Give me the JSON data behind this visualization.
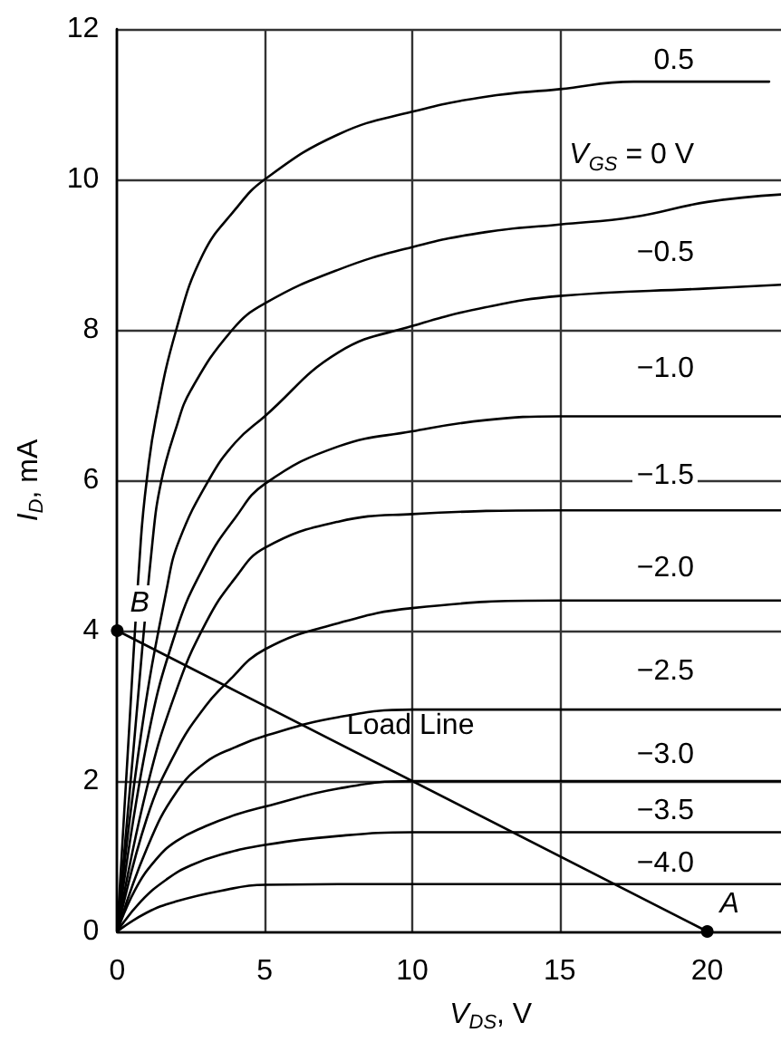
{
  "chart_data": {
    "type": "line",
    "xlabel": "V$_{DS}$, V",
    "ylabel": "I$_{D}$, mA",
    "xlim": [
      0,
      22.5
    ],
    "ylim": [
      0,
      12
    ],
    "xticks": [
      0,
      5,
      10,
      15,
      20
    ],
    "yticks": [
      0,
      2,
      4,
      6,
      8,
      10,
      12
    ],
    "grid": true,
    "marker": "none",
    "series": [
      {
        "name": "0.5",
        "color": "#000000",
        "x": [
          0,
          0.3,
          0.8,
          1.0,
          1.3,
          2.0,
          2.9,
          4.0,
          5.0,
          7.5,
          10,
          12.5,
          15,
          17.5,
          20,
          22.1
        ],
        "values": [
          0,
          2.0,
          5.2,
          6.0,
          6.8,
          8.0,
          9.0,
          9.6,
          10.0,
          10.6,
          10.9,
          11.1,
          11.2,
          11.3,
          11.3,
          11.3
        ]
      },
      {
        "name": "V$_{GS}$ = 0 V",
        "color": "#000000",
        "x": [
          0,
          0.5,
          1.2,
          1.5,
          2.0,
          2.5,
          3.9,
          5.0,
          7.5,
          10,
          12.5,
          15,
          17.5,
          20,
          22.5
        ],
        "values": [
          0,
          2.2,
          5.2,
          6.0,
          6.7,
          7.2,
          8.0,
          8.35,
          8.8,
          9.1,
          9.3,
          9.4,
          9.5,
          9.7,
          9.8
        ]
      },
      {
        "name": "−0.5",
        "color": "#000000",
        "x": [
          0,
          0.8,
          1.7,
          2.1,
          3.1,
          4.0,
          5.0,
          7.5,
          10,
          12.5,
          15,
          20,
          22.5
        ],
        "values": [
          0,
          2.6,
          4.6,
          5.2,
          6.0,
          6.5,
          6.85,
          7.7,
          8.05,
          8.3,
          8.45,
          8.55,
          8.6
        ]
      },
      {
        "name": "−1.0",
        "color": "#000000",
        "x": [
          0,
          1.0,
          2.0,
          3.0,
          4.0,
          5.0,
          7.5,
          10,
          12.5,
          15,
          22.5
        ],
        "values": [
          0,
          2.5,
          4.0,
          4.9,
          5.5,
          5.95,
          6.45,
          6.65,
          6.8,
          6.85,
          6.85
        ]
      },
      {
        "name": "−1.5",
        "color": "#000000",
        "x": [
          0,
          1.0,
          2.0,
          3.0,
          4.0,
          5.0,
          7.5,
          10,
          15,
          22.5
        ],
        "values": [
          0,
          1.9,
          3.2,
          4.1,
          4.7,
          5.1,
          5.45,
          5.55,
          5.6,
          5.6
        ]
      },
      {
        "name": "−2.0",
        "color": "#000000",
        "x": [
          0,
          1.0,
          2.0,
          3.0,
          3.7,
          5.0,
          7.5,
          10,
          15,
          22.5
        ],
        "values": [
          0,
          1.5,
          2.4,
          3.0,
          3.3,
          3.75,
          4.1,
          4.3,
          4.4,
          4.4
        ]
      },
      {
        "name": "−2.5",
        "color": "#000000",
        "x": [
          0,
          1.0,
          2.0,
          3.0,
          4.0,
          5.0,
          7.5,
          10,
          22.5
        ],
        "values": [
          0,
          1.1,
          1.85,
          2.25,
          2.45,
          2.6,
          2.85,
          2.95,
          2.95
        ]
      },
      {
        "name": "−3.0",
        "color": "#000000",
        "x": [
          0,
          0.6,
          1.3,
          2.0,
          3.0,
          4.0,
          5.0,
          7.5,
          10,
          22.5
        ],
        "values": [
          0,
          0.55,
          0.95,
          1.2,
          1.4,
          1.55,
          1.66,
          1.9,
          2.0,
          2.0
        ]
      },
      {
        "name": "−3.5",
        "color": "#000000",
        "x": [
          0,
          0.8,
          1.7,
          2.5,
          3.5,
          5.0,
          7.5,
          10,
          22.5
        ],
        "values": [
          0,
          0.4,
          0.7,
          0.88,
          1.02,
          1.15,
          1.27,
          1.32,
          1.32
        ]
      },
      {
        "name": "−4.0",
        "color": "#000000",
        "x": [
          0,
          1.0,
          2.0,
          3.5,
          5.0,
          10,
          22.5
        ],
        "values": [
          0,
          0.25,
          0.4,
          0.54,
          0.62,
          0.63,
          0.63
        ]
      },
      {
        "name": "Load Line",
        "color": "#000000",
        "marker": "circle",
        "x": [
          0,
          20
        ],
        "values": [
          4,
          0
        ]
      }
    ],
    "annotations": [
      {
        "text": "B",
        "x": 0,
        "y": 4
      },
      {
        "text": "A",
        "x": 20,
        "y": 0
      }
    ]
  }
}
